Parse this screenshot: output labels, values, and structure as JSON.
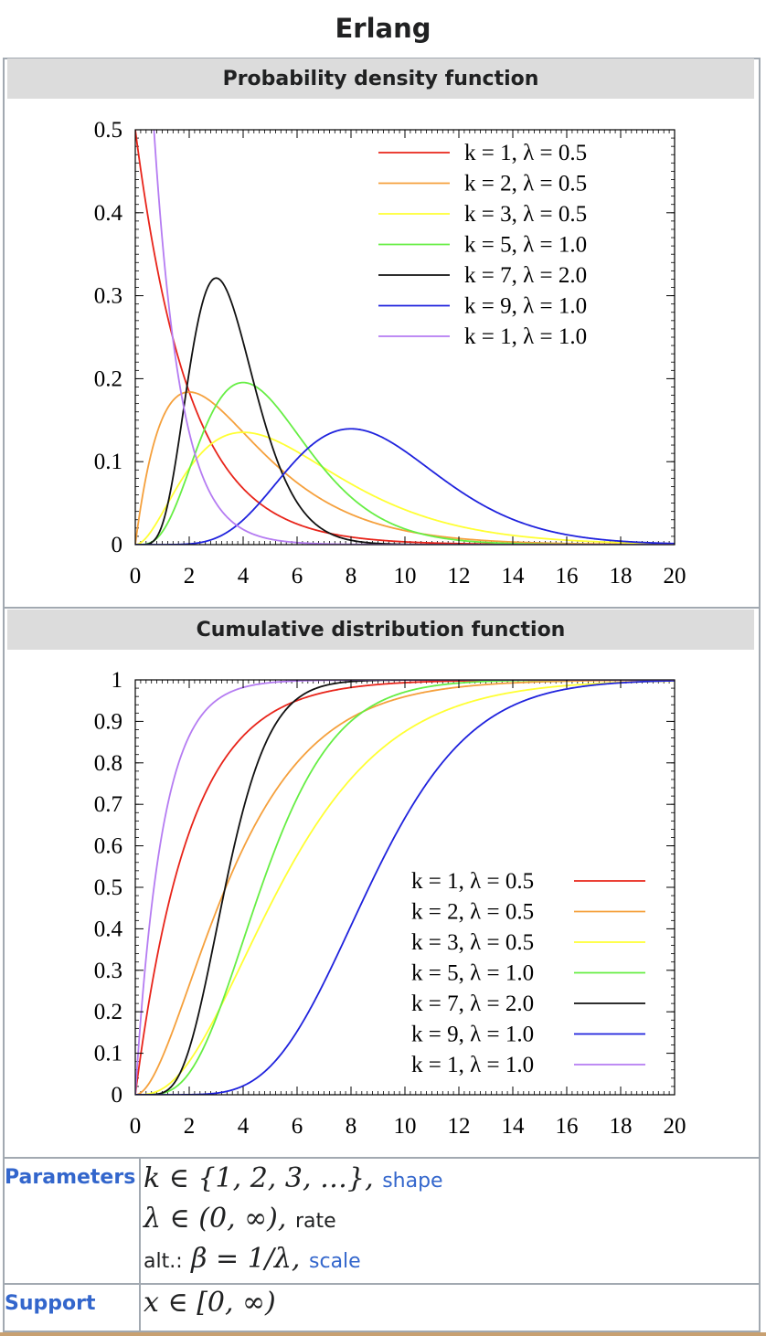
{
  "infobox": {
    "title": "Erlang",
    "pdf_heading": "Probability density function",
    "cdf_heading": "Cumulative distribution function"
  },
  "chart_data": [
    {
      "type": "line",
      "title": "",
      "xlabel": "",
      "ylabel": "",
      "xlim": [
        0,
        20
      ],
      "ylim": [
        0,
        0.5
      ],
      "xticks": [
        0,
        2,
        4,
        6,
        8,
        10,
        12,
        14,
        16,
        18,
        20
      ],
      "yticks": [
        "0",
        "0.1",
        "0.2",
        "0.3",
        "0.4",
        "0.5"
      ],
      "yticks_values": [
        0,
        0.1,
        0.2,
        0.3,
        0.4,
        0.5
      ],
      "legend_placement": "top-right",
      "grid": false,
      "series": [
        {
          "name": "k = 1, λ = 0.5",
          "k": 1,
          "lambda": 0.5,
          "color": "#e8241a"
        },
        {
          "name": "k = 2, λ = 0.5",
          "k": 2,
          "lambda": 0.5,
          "color": "#f5a03c"
        },
        {
          "name": "k = 3, λ = 0.5",
          "k": 3,
          "lambda": 0.5,
          "color": "#ffff33"
        },
        {
          "name": "k = 5, λ = 1.0",
          "k": 5,
          "lambda": 1.0,
          "color": "#66ee44"
        },
        {
          "name": "k = 7, λ = 2.0",
          "k": 7,
          "lambda": 2.0,
          "color": "#111111"
        },
        {
          "name": "k = 9, λ = 1.0",
          "k": 9,
          "lambda": 1.0,
          "color": "#1f22dd"
        },
        {
          "name": "k = 1, λ = 1.0",
          "k": 1,
          "lambda": 1.0,
          "color": "#b57cf2"
        }
      ]
    },
    {
      "type": "line",
      "title": "",
      "xlabel": "",
      "ylabel": "",
      "xlim": [
        0,
        20
      ],
      "ylim": [
        0,
        1
      ],
      "xticks": [
        0,
        2,
        4,
        6,
        8,
        10,
        12,
        14,
        16,
        18,
        20
      ],
      "yticks": [
        "0",
        "0.1",
        "0.2",
        "0.3",
        "0.4",
        "0.5",
        "0.6",
        "0.7",
        "0.8",
        "0.9",
        "1"
      ],
      "yticks_values": [
        0,
        0.1,
        0.2,
        0.3,
        0.4,
        0.5,
        0.6,
        0.7,
        0.8,
        0.9,
        1
      ],
      "legend_placement": "bottom-right",
      "grid": false,
      "series": [
        {
          "name": "k = 1, λ = 0.5",
          "k": 1,
          "lambda": 0.5,
          "color": "#e8241a"
        },
        {
          "name": "k = 2, λ = 0.5",
          "k": 2,
          "lambda": 0.5,
          "color": "#f5a03c"
        },
        {
          "name": "k = 3, λ = 0.5",
          "k": 3,
          "lambda": 0.5,
          "color": "#ffff33"
        },
        {
          "name": "k = 5, λ = 1.0",
          "k": 5,
          "lambda": 1.0,
          "color": "#66ee44"
        },
        {
          "name": "k = 7, λ = 2.0",
          "k": 7,
          "lambda": 2.0,
          "color": "#111111"
        },
        {
          "name": "k = 9, λ = 1.0",
          "k": 9,
          "lambda": 1.0,
          "color": "#1f22dd"
        },
        {
          "name": "k = 1, λ = 1.0",
          "k": 1,
          "lambda": 1.0,
          "color": "#b57cf2"
        }
      ]
    }
  ],
  "rows": {
    "parameters": {
      "label": "Parameters",
      "line1_math": "k ∈ {1, 2, 3, …},",
      "line1_link": "shape",
      "line2_math": "λ ∈ (0, ∞),",
      "line2_note": "rate",
      "line3_prefix": "alt.:",
      "line3_math": "β = 1/λ,",
      "line3_link": "scale"
    },
    "support": {
      "label": "Support",
      "math": "x ∈ [0, ∞)"
    }
  },
  "colors": {
    "link": "#3366cc",
    "border": "#a2a9b1",
    "heading_bg": "#dcdcdc"
  }
}
